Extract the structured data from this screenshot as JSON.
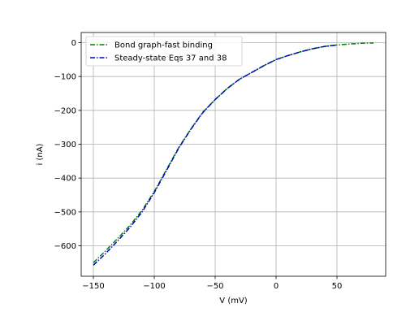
{
  "chart_data": {
    "type": "line",
    "xlabel": "V (mV)",
    "ylabel": "i (nA)",
    "xlim": [
      -160,
      90
    ],
    "ylim": [
      -690,
      30
    ],
    "xticks": [
      -150,
      -100,
      -50,
      0,
      50
    ],
    "yticks": [
      0,
      -100,
      -200,
      -300,
      -400,
      -500,
      -600
    ],
    "xtick_labels": [
      "−150",
      "−100",
      "−50",
      "0",
      "50"
    ],
    "ytick_labels": [
      "0",
      "−100",
      "−200",
      "−300",
      "−400",
      "−500",
      "−600"
    ],
    "grid": true,
    "legend_position": "top-left",
    "series": [
      {
        "name": "Bond graph-fast binding",
        "color": "#008000",
        "linestyle": "dash-dot",
        "x": [
          -150,
          -140,
          -130,
          -120,
          -110,
          -100,
          -90,
          -80,
          -70,
          -60,
          -50,
          -40,
          -30,
          -20,
          -10,
          0,
          10,
          20,
          30,
          40,
          50,
          60,
          70,
          80
        ],
        "y": [
          -650,
          -615,
          -578,
          -540,
          -495,
          -440,
          -375,
          -310,
          -255,
          -205,
          -168,
          -135,
          -108,
          -88,
          -68,
          -50,
          -38,
          -27,
          -18,
          -11,
          -7,
          -4,
          -2,
          -1
        ]
      },
      {
        "name": "Steady-state Eqs 37 and 38",
        "color": "#0000cc",
        "linestyle": "dash-dot",
        "x": [
          -150,
          -140,
          -130,
          -120,
          -110,
          -100,
          -90,
          -80,
          -70,
          -60,
          -50,
          -40,
          -30,
          -20,
          -10,
          0,
          10,
          20,
          30,
          40,
          50
        ],
        "y": [
          -657,
          -623,
          -585,
          -546,
          -500,
          -443,
          -378,
          -312,
          -256,
          -206,
          -168,
          -135,
          -108,
          -88,
          -68,
          -50,
          -38,
          -27,
          -18,
          -11,
          -7
        ]
      }
    ]
  }
}
